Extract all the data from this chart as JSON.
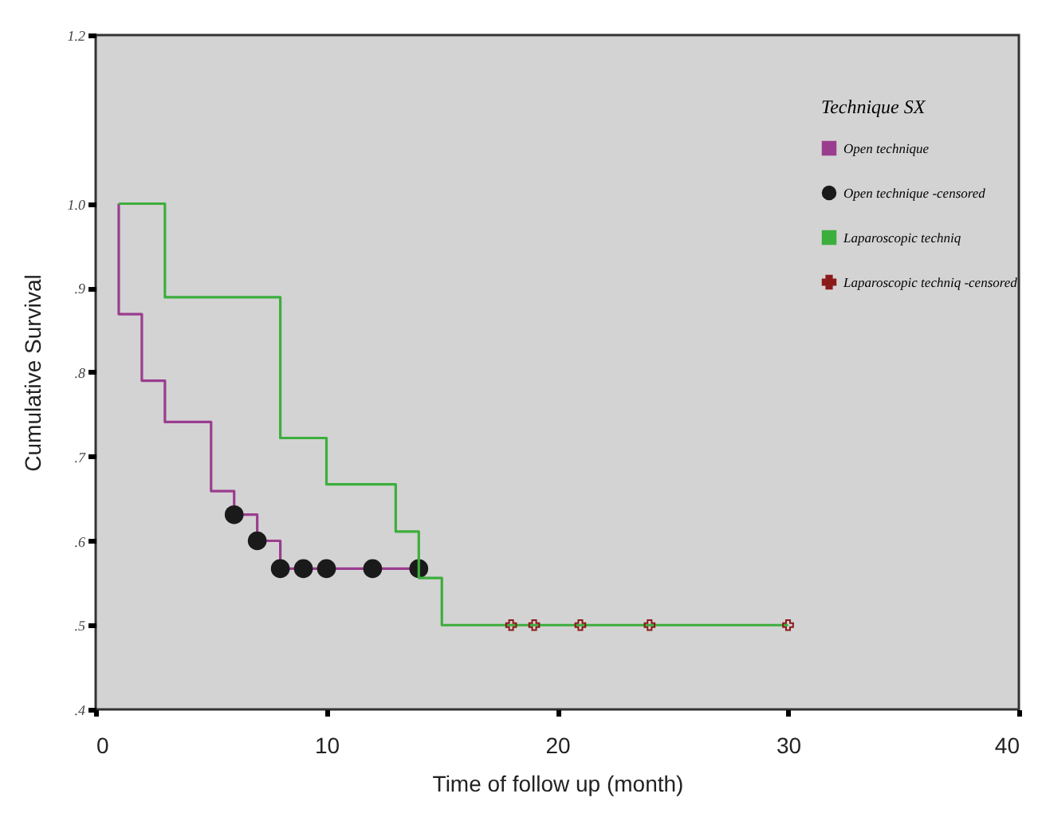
{
  "chart_data": {
    "type": "step",
    "xlabel": "Time of follow up (month)",
    "ylabel": "Cumulative Survival",
    "legend_title": "Technique SX",
    "legend": "top right",
    "grid": false,
    "xlim": [
      0,
      40
    ],
    "xticks": [
      0,
      10,
      20,
      30,
      40
    ],
    "ylim": [
      0.4,
      1.2
    ],
    "yticks": [
      {
        "value": 0.4,
        "label": ".4"
      },
      {
        "value": 0.5,
        "label": ".5"
      },
      {
        "value": 0.6,
        "label": ".6"
      },
      {
        "value": 0.7,
        "label": ".7"
      },
      {
        "value": 0.8,
        "label": ".8"
      },
      {
        "value": 0.9,
        "label": ".9"
      },
      {
        "value": 1.0,
        "label": "1.0"
      },
      {
        "value": 1.2,
        "label": "1.2"
      }
    ],
    "series": [
      {
        "name": "Open technique",
        "color": "#9b3d8f",
        "x": [
          1,
          1,
          2,
          3,
          5,
          6,
          7,
          8,
          14
        ],
        "values": [
          1.0,
          0.869,
          0.79,
          0.741,
          0.659,
          0.631,
          0.6,
          0.567,
          0.567
        ]
      },
      {
        "name": "Open technique -censored",
        "type": "scatter",
        "marker": "circle",
        "color": "#1a1a1a",
        "x": [
          6,
          7,
          8,
          9,
          10,
          12,
          14
        ],
        "values": [
          0.631,
          0.6,
          0.567,
          0.567,
          0.567,
          0.567,
          0.567
        ]
      },
      {
        "name": "Laparoscopic techniq",
        "color": "#3cae3c",
        "x": [
          1,
          3,
          8,
          10,
          13,
          14,
          15,
          30
        ],
        "values": [
          1.0,
          0.889,
          0.722,
          0.667,
          0.611,
          0.556,
          0.5,
          0.5
        ]
      },
      {
        "name": "Laparoscopic techniq -censored",
        "type": "scatter",
        "marker": "cross",
        "color": "#8b1a1a",
        "x": [
          18,
          19,
          21,
          24,
          30
        ],
        "values": [
          0.5,
          0.5,
          0.5,
          0.5,
          0.5
        ]
      }
    ]
  }
}
